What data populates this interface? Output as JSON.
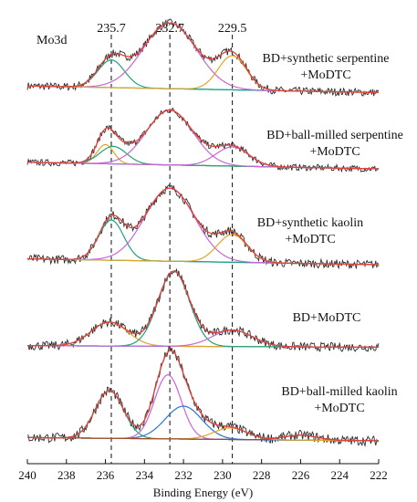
{
  "chart_data": {
    "type": "line",
    "title": "",
    "corner_label": "Mo3d",
    "xlabel": "Binding Energy (eV)",
    "ylabel": "",
    "x_reversed": true,
    "xlim": [
      240,
      222
    ],
    "x_ticks": [
      240,
      238,
      236,
      234,
      232,
      230,
      228,
      226,
      224,
      222
    ],
    "grid": false,
    "reference_lines": [
      {
        "x": 235.7,
        "label": "235.7"
      },
      {
        "x": 232.7,
        "label": "232.7"
      },
      {
        "x": 229.5,
        "label": "229.5"
      }
    ],
    "colors": {
      "raw": "#2b2b2b",
      "envelope": "#e0413a",
      "background": "#22b8cc",
      "comp_green": "#1ea37a",
      "comp_magenta": "#c766d6",
      "comp_orange": "#e0a52a",
      "comp_blue": "#2b74d6",
      "comp_brown": "#a04a2a"
    },
    "panels": [
      {
        "label_lines": [
          "BD+synthetic serpentine",
          "+MoDTC"
        ],
        "background": {
          "left": 0.08,
          "right": -0.02
        },
        "components": [
          {
            "role": "comp_green",
            "center": 235.7,
            "height": 0.42,
            "fwhm": 1.6
          },
          {
            "role": "comp_magenta",
            "center": 232.7,
            "height": 1.0,
            "fwhm": 3.2
          },
          {
            "role": "comp_orange",
            "center": 229.5,
            "height": 0.52,
            "fwhm": 1.7
          }
        ]
      },
      {
        "label_lines": [
          "BD+ball-milled serpentine",
          "+MoDTC"
        ],
        "background": {
          "left": 0.12,
          "right": 0.0
        },
        "components": [
          {
            "role": "comp_orange",
            "center": 236.0,
            "height": 0.35,
            "fwhm": 1.0
          },
          {
            "role": "comp_green",
            "center": 235.6,
            "height": 0.32,
            "fwhm": 1.6
          },
          {
            "role": "comp_magenta",
            "center": 232.7,
            "height": 1.0,
            "fwhm": 2.8
          },
          {
            "role": "comp_magenta",
            "center": 229.5,
            "height": 0.35,
            "fwhm": 2.0
          }
        ]
      },
      {
        "label_lines": [
          "BD+synthetic kaolin",
          "+MoDTC"
        ],
        "background": {
          "left": 0.08,
          "right": 0.0
        },
        "components": [
          {
            "role": "comp_green",
            "center": 235.7,
            "height": 0.55,
            "fwhm": 1.5
          },
          {
            "role": "comp_magenta",
            "center": 232.7,
            "height": 1.0,
            "fwhm": 3.0
          },
          {
            "role": "comp_orange",
            "center": 229.5,
            "height": 0.38,
            "fwhm": 1.8
          }
        ]
      },
      {
        "label_lines": [
          "BD+MoDTC"
        ],
        "background": {
          "left": 0.04,
          "right": 0.02
        },
        "components": [
          {
            "role": "comp_orange",
            "center": 235.8,
            "height": 0.32,
            "fwhm": 2.2
          },
          {
            "role": "comp_green",
            "center": 232.5,
            "height": 1.0,
            "fwhm": 1.9
          },
          {
            "role": "comp_magenta",
            "center": 229.5,
            "height": 0.22,
            "fwhm": 2.4
          }
        ]
      },
      {
        "label_lines": [
          "BD+ball-milled kaolin",
          "+MoDTC"
        ],
        "background": {
          "left": 0.04,
          "right": 0.0
        },
        "components": [
          {
            "role": "comp_green",
            "center": 235.8,
            "height": 0.58,
            "fwhm": 1.7
          },
          {
            "role": "comp_magenta",
            "center": 232.8,
            "height": 0.78,
            "fwhm": 1.6
          },
          {
            "role": "comp_blue",
            "center": 232.0,
            "height": 0.4,
            "fwhm": 2.2
          },
          {
            "role": "comp_orange",
            "center": 229.6,
            "height": 0.14,
            "fwhm": 2.0
          },
          {
            "role": "comp_brown",
            "center": 226.0,
            "height": 0.06,
            "fwhm": 2.0
          }
        ]
      }
    ]
  }
}
